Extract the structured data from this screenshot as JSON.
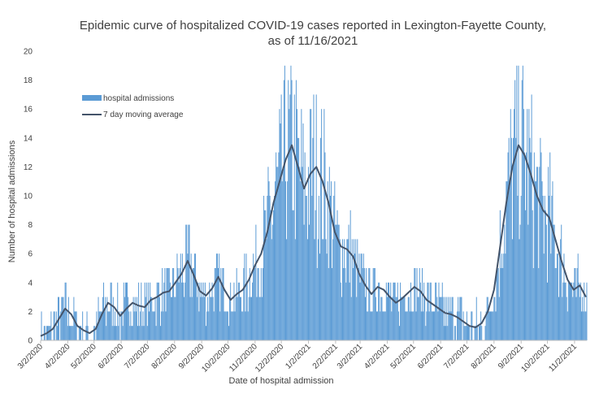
{
  "chart_data": {
    "type": "bar",
    "title_lines": [
      "Epidemic curve of hospitalized COVID-19 cases reported in Lexington-Fayette County,",
      "as of 11/16/2021"
    ],
    "xlabel": "Date of hospital admission",
    "ylabel": "Number of hospital admissions",
    "ylim": [
      0,
      20
    ],
    "yticks": [
      0,
      2,
      4,
      6,
      8,
      10,
      12,
      14,
      16,
      18,
      20
    ],
    "x_start": "3/2/2020",
    "x_end": "11/16/2021",
    "x_tick_labels": [
      "3/2/2020",
      "4/2/2020",
      "5/2/2020",
      "6/2/2020",
      "7/2/2020",
      "8/2/2020",
      "9/2/2020",
      "10/2/2020",
      "11/2/2020",
      "12/2/2020",
      "1/2/2021",
      "2/2/2021",
      "3/2/2021",
      "4/2/2021",
      "5/2/2021",
      "6/2/2021",
      "7/2/2021",
      "8/2/2021",
      "9/2/2021",
      "10/2/2021",
      "11/2/2021"
    ],
    "series": [
      {
        "name": "hospital admissions",
        "type": "bar",
        "color": "#5b9bd5"
      },
      {
        "name": "7 day moving average",
        "type": "line",
        "color": "#44546a"
      }
    ],
    "weekly_dates": [
      "3/2/2020",
      "3/9/2020",
      "3/16/2020",
      "3/23/2020",
      "3/30/2020",
      "4/6/2020",
      "4/13/2020",
      "4/20/2020",
      "4/27/2020",
      "5/4/2020",
      "5/11/2020",
      "5/18/2020",
      "5/25/2020",
      "6/1/2020",
      "6/8/2020",
      "6/15/2020",
      "6/22/2020",
      "6/29/2020",
      "7/6/2020",
      "7/13/2020",
      "7/20/2020",
      "7/27/2020",
      "8/3/2020",
      "8/10/2020",
      "8/17/2020",
      "8/24/2020",
      "8/31/2020",
      "9/7/2020",
      "9/14/2020",
      "9/21/2020",
      "9/28/2020",
      "10/5/2020",
      "10/12/2020",
      "10/19/2020",
      "10/26/2020",
      "11/2/2020",
      "11/9/2020",
      "11/16/2020",
      "11/23/2020",
      "11/30/2020",
      "12/7/2020",
      "12/14/2020",
      "12/21/2020",
      "12/28/2020",
      "1/4/2021",
      "1/11/2021",
      "1/18/2021",
      "1/25/2021",
      "2/1/2021",
      "2/8/2021",
      "2/15/2021",
      "2/22/2021",
      "3/1/2021",
      "3/8/2021",
      "3/15/2021",
      "3/22/2021",
      "3/29/2021",
      "4/5/2021",
      "4/12/2021",
      "4/19/2021",
      "4/26/2021",
      "5/3/2021",
      "5/10/2021",
      "5/17/2021",
      "5/24/2021",
      "5/31/2021",
      "6/7/2021",
      "6/14/2021",
      "6/21/2021",
      "6/28/2021",
      "7/5/2021",
      "7/12/2021",
      "7/19/2021",
      "7/26/2021",
      "8/2/2021",
      "8/9/2021",
      "8/16/2021",
      "8/23/2021",
      "8/30/2021",
      "9/6/2021",
      "9/13/2021",
      "9/20/2021",
      "9/27/2021",
      "10/4/2021",
      "10/11/2021",
      "10/18/2021",
      "10/25/2021",
      "11/1/2021",
      "11/8/2021",
      "11/15/2021"
    ],
    "weekly_moving_average": [
      0.3,
      0.5,
      0.8,
      1.5,
      2.2,
      1.8,
      1.0,
      0.7,
      0.5,
      0.8,
      1.8,
      2.6,
      2.3,
      1.7,
      2.2,
      2.6,
      2.4,
      2.3,
      2.8,
      3.0,
      3.3,
      3.4,
      4.0,
      4.6,
      5.5,
      4.5,
      3.4,
      3.1,
      3.6,
      4.4,
      3.5,
      2.8,
      3.2,
      3.5,
      4.2,
      5.2,
      6.0,
      7.5,
      9.5,
      11.0,
      12.5,
      13.5,
      12.0,
      10.5,
      11.5,
      12.0,
      11.0,
      9.5,
      7.5,
      6.5,
      6.3,
      5.8,
      4.6,
      3.8,
      3.2,
      3.7,
      3.5,
      3.0,
      2.6,
      2.9,
      3.3,
      3.7,
      3.4,
      2.8,
      2.5,
      2.2,
      1.9,
      1.8,
      1.6,
      1.3,
      1.0,
      0.9,
      1.2,
      2.0,
      3.5,
      6.5,
      9.5,
      12.0,
      13.5,
      12.8,
      11.5,
      10.0,
      9.0,
      8.5,
      7.0,
      5.5,
      4.2,
      3.5,
      3.8,
      3.0
    ]
  }
}
